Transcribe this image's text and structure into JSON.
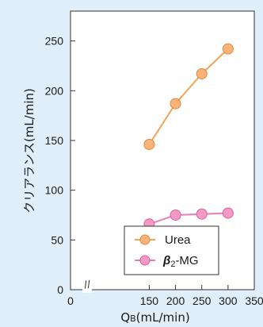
{
  "chart_data": {
    "type": "line",
    "x": [
      150,
      200,
      250,
      300
    ],
    "series": [
      {
        "name": "Urea",
        "values": [
          146,
          187,
          217,
          242
        ],
        "color": "#f2a45a"
      },
      {
        "name": "β2-MG",
        "name_parts": [
          "β",
          "2",
          "-MG"
        ],
        "values": [
          66,
          75,
          76,
          77
        ],
        "color": "#e97fb0"
      }
    ],
    "xlabel": "QB(mL/min)",
    "xlabel_parts": [
      "Q",
      "B",
      "(mL/min)"
    ],
    "ylabel": "クリアランス(mL/min)",
    "xticks": [
      0,
      150,
      200,
      250,
      300,
      350
    ],
    "yticks": [
      0,
      50,
      100,
      150,
      200,
      250
    ],
    "xlim": [
      0,
      350
    ],
    "ylim": [
      0,
      280
    ],
    "axis_break": "//",
    "grid": false,
    "legend_position": "bottom-right",
    "background": "#dfeef8",
    "plot_background": "#ffffff"
  }
}
